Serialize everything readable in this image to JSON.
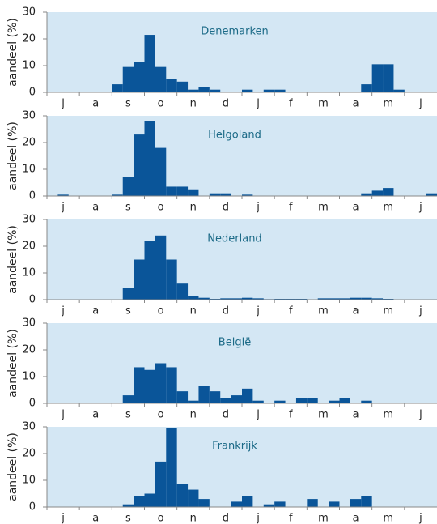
{
  "chart_data": [
    {
      "type": "bar",
      "title": "Denemarken",
      "ylabel": "aandeel (%)",
      "color": "#0a5599",
      "ylim": [
        0,
        30
      ],
      "yticks": [
        0,
        10,
        20,
        30
      ],
      "categories": [
        null,
        "j",
        null,
        null,
        "a",
        null,
        null,
        "s",
        null,
        null,
        "o",
        null,
        null,
        "n",
        null,
        null,
        "d",
        null,
        null,
        "j",
        null,
        null,
        "f",
        null,
        null,
        "m",
        null,
        null,
        "a",
        null,
        null,
        "m",
        null,
        null,
        "j",
        null
      ],
      "values": [
        0,
        0,
        0,
        0,
        0,
        0,
        3,
        9.5,
        11.5,
        21.5,
        9.5,
        5,
        4,
        1,
        2,
        1,
        0,
        0,
        1,
        0,
        1,
        1,
        0,
        0,
        0,
        0,
        0,
        0,
        0,
        3,
        10.5,
        10.5,
        1,
        0,
        0,
        0
      ]
    },
    {
      "type": "bar",
      "title": "Helgoland",
      "ylabel": "aandeel (%)",
      "color": "#0a5599",
      "ylim": [
        0,
        30
      ],
      "yticks": [
        0,
        10,
        20,
        30
      ],
      "categories": [
        null,
        "j",
        null,
        null,
        "a",
        null,
        null,
        "s",
        null,
        null,
        "o",
        null,
        null,
        "n",
        null,
        null,
        "d",
        null,
        null,
        "j",
        null,
        null,
        "f",
        null,
        null,
        "m",
        null,
        null,
        "a",
        null,
        null,
        "m",
        null,
        null,
        "j",
        null
      ],
      "values": [
        0,
        0.5,
        0,
        0,
        0,
        0,
        0.5,
        7,
        23,
        28,
        18,
        3.5,
        3.5,
        2.5,
        0,
        1,
        1,
        0,
        0.5,
        0,
        0,
        0,
        0,
        0,
        0,
        0,
        0,
        0,
        0,
        1,
        2,
        3,
        0,
        0,
        0,
        1
      ]
    },
    {
      "type": "bar",
      "title": "Nederland",
      "ylabel": "aandeel (%)",
      "color": "#0a5599",
      "ylim": [
        0,
        30
      ],
      "yticks": [
        0,
        10,
        20,
        30
      ],
      "categories": [
        null,
        "j",
        null,
        null,
        "a",
        null,
        null,
        "s",
        null,
        null,
        "o",
        null,
        null,
        "n",
        null,
        null,
        "d",
        null,
        null,
        "j",
        null,
        null,
        "f",
        null,
        null,
        "m",
        null,
        null,
        "a",
        null,
        null,
        "m",
        null,
        null,
        "j",
        null
      ],
      "values": [
        0,
        0,
        0,
        0,
        0,
        0,
        0,
        4.5,
        15,
        22,
        24,
        15,
        6,
        1.5,
        0.7,
        0.3,
        0.5,
        0.5,
        0.7,
        0.5,
        0.2,
        0.3,
        0.3,
        0.3,
        0,
        0.5,
        0.5,
        0.5,
        0.7,
        0.7,
        0.5,
        0.3,
        0,
        0,
        0,
        0
      ]
    },
    {
      "type": "bar",
      "title": "België",
      "ylabel": "aandeel (%)",
      "color": "#0a5599",
      "ylim": [
        0,
        30
      ],
      "yticks": [
        0,
        10,
        20,
        30
      ],
      "categories": [
        null,
        "j",
        null,
        null,
        "a",
        null,
        null,
        "s",
        null,
        null,
        "o",
        null,
        null,
        "n",
        null,
        null,
        "d",
        null,
        null,
        "j",
        null,
        null,
        "f",
        null,
        null,
        "m",
        null,
        null,
        "a",
        null,
        null,
        "m",
        null,
        null,
        "j",
        null
      ],
      "values": [
        0,
        0,
        0,
        0,
        0,
        0,
        0,
        3,
        13.5,
        12.5,
        15,
        13.5,
        4.5,
        1,
        6.5,
        4.5,
        2,
        3,
        5.5,
        1,
        0,
        1,
        0,
        2,
        2,
        0,
        1,
        2,
        0,
        1,
        0,
        0,
        0,
        0,
        0,
        0
      ]
    },
    {
      "type": "bar",
      "title": "Frankrijk",
      "ylabel": "aandeel (%)",
      "color": "#0a5599",
      "ylim": [
        0,
        30
      ],
      "yticks": [
        0,
        10,
        20,
        30
      ],
      "categories": [
        null,
        "j",
        null,
        null,
        "a",
        null,
        null,
        "s",
        null,
        null,
        "o",
        null,
        null,
        "n",
        null,
        null,
        "d",
        null,
        null,
        "j",
        null,
        null,
        "f",
        null,
        null,
        "m",
        null,
        null,
        "a",
        null,
        null,
        "m",
        null,
        null,
        "j",
        null
      ],
      "values": [
        0,
        0,
        0,
        0,
        0,
        0,
        0,
        1,
        4,
        5,
        17,
        29.5,
        8.5,
        6.5,
        3,
        0,
        0,
        2,
        4,
        0,
        1,
        2,
        0,
        0,
        3,
        0,
        2,
        0,
        3,
        4,
        0,
        0,
        0,
        0,
        0,
        0
      ]
    }
  ]
}
